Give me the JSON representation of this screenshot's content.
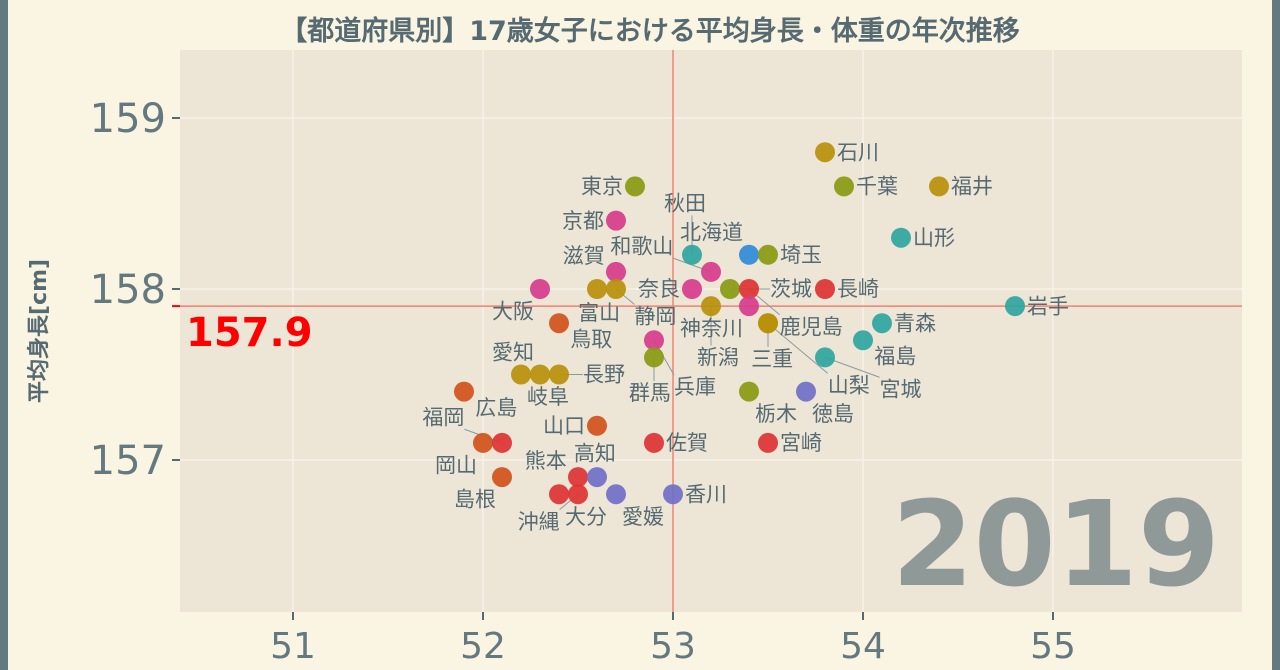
{
  "chart_data": {
    "type": "scatter",
    "title": "【都道府県別】17歳女子における平均身長・体重の年次推移",
    "xlabel": "",
    "ylabel": "平均身長[cm]",
    "year_label": "2019",
    "xlim": [
      50.4,
      55.95
    ],
    "ylim": [
      156.1,
      159.4
    ],
    "xticks": [
      51,
      52,
      53,
      54,
      55
    ],
    "yticks": [
      157,
      158,
      159
    ],
    "reference": {
      "x": 53,
      "y": 157.9,
      "y_label": "157.9",
      "color": "#ff0000"
    },
    "grid": true,
    "points": [
      {
        "name": "石川",
        "x": 53.8,
        "y": 158.8,
        "color": "#b8900a"
      },
      {
        "name": "千葉",
        "x": 53.9,
        "y": 158.6,
        "color": "#8a9a12"
      },
      {
        "name": "福井",
        "x": 54.4,
        "y": 158.6,
        "color": "#b8900a"
      },
      {
        "name": "東京",
        "x": 52.8,
        "y": 158.6,
        "color": "#8a9a12"
      },
      {
        "name": "京都",
        "x": 52.7,
        "y": 158.4,
        "color": "#d63c8c"
      },
      {
        "name": "山形",
        "x": 54.2,
        "y": 158.3,
        "color": "#2ea59f"
      },
      {
        "name": "秋田",
        "x": 53.1,
        "y": 158.2,
        "color": "#2ea59f"
      },
      {
        "name": "北海道",
        "x": 53.4,
        "y": 158.2,
        "color": "#2e8bd8"
      },
      {
        "name": "埼玉",
        "x": 53.5,
        "y": 158.2,
        "color": "#8a9a12"
      },
      {
        "name": "滋賀",
        "x": 52.7,
        "y": 158.1,
        "color": "#d63c8c"
      },
      {
        "name": "和歌山",
        "x": 53.2,
        "y": 158.1,
        "color": "#d63c8c"
      },
      {
        "name": "大阪",
        "x": 52.3,
        "y": 158.0,
        "color": "#d63c8c"
      },
      {
        "name": "富山",
        "x": 52.6,
        "y": 158.0,
        "color": "#b8900a"
      },
      {
        "name": "静岡",
        "x": 52.7,
        "y": 158.0,
        "color": "#b8900a"
      },
      {
        "name": "奈良",
        "x": 53.1,
        "y": 158.0,
        "color": "#d63c8c"
      },
      {
        "name": "茨城",
        "x": 53.3,
        "y": 158.0,
        "color": "#8a9a12"
      },
      {
        "name": "鹿児島",
        "x": 53.4,
        "y": 158.0,
        "color": "#dd3333"
      },
      {
        "name": "長崎",
        "x": 53.8,
        "y": 158.0,
        "color": "#dd3333"
      },
      {
        "name": "新潟",
        "x": 53.2,
        "y": 157.9,
        "color": "#b8900a"
      },
      {
        "name": "神奈川",
        "x": 53.4,
        "y": 157.9,
        "color": "#d63c8c"
      },
      {
        "name": "三重",
        "x": 53.5,
        "y": 157.8,
        "color": "#b8900a"
      },
      {
        "name": "山梨",
        "x": 53.5,
        "y": 157.8,
        "color": "#b8900a"
      },
      {
        "name": "岩手",
        "x": 54.8,
        "y": 157.9,
        "color": "#2ea59f"
      },
      {
        "name": "青森",
        "x": 54.1,
        "y": 157.8,
        "color": "#2ea59f"
      },
      {
        "name": "福島",
        "x": 54.0,
        "y": 157.7,
        "color": "#2ea59f"
      },
      {
        "name": "宮城",
        "x": 53.8,
        "y": 157.6,
        "color": "#2ea59f"
      },
      {
        "name": "鳥取",
        "x": 52.4,
        "y": 157.8,
        "color": "#d0521a"
      },
      {
        "name": "兵庫",
        "x": 52.9,
        "y": 157.7,
        "color": "#d63c8c"
      },
      {
        "name": "群馬",
        "x": 52.9,
        "y": 157.6,
        "color": "#8a9a12"
      },
      {
        "name": "岐阜",
        "x": 52.2,
        "y": 157.5,
        "color": "#b8900a"
      },
      {
        "name": "愛知",
        "x": 52.3,
        "y": 157.5,
        "color": "#b8900a"
      },
      {
        "name": "長野",
        "x": 52.4,
        "y": 157.5,
        "color": "#b8900a"
      },
      {
        "name": "広島",
        "x": 51.9,
        "y": 157.4,
        "color": "#d0521a"
      },
      {
        "name": "栃木",
        "x": 53.4,
        "y": 157.4,
        "color": "#8a9a12"
      },
      {
        "name": "徳島",
        "x": 53.7,
        "y": 157.4,
        "color": "#7070c8"
      },
      {
        "name": "山口",
        "x": 52.6,
        "y": 157.2,
        "color": "#d0521a"
      },
      {
        "name": "岡山",
        "x": 52.0,
        "y": 157.1,
        "color": "#d0521a"
      },
      {
        "name": "福岡",
        "x": 52.1,
        "y": 157.1,
        "color": "#dd3333"
      },
      {
        "name": "佐賀",
        "x": 52.9,
        "y": 157.1,
        "color": "#dd3333"
      },
      {
        "name": "宮崎",
        "x": 53.5,
        "y": 157.1,
        "color": "#dd3333"
      },
      {
        "name": "島根",
        "x": 52.1,
        "y": 156.9,
        "color": "#d0521a"
      },
      {
        "name": "熊本",
        "x": 52.5,
        "y": 156.9,
        "color": "#dd3333"
      },
      {
        "name": "高知",
        "x": 52.6,
        "y": 156.9,
        "color": "#7070c8"
      },
      {
        "name": "大分",
        "x": 52.4,
        "y": 156.8,
        "color": "#dd3333"
      },
      {
        "name": "沖縄",
        "x": 52.5,
        "y": 156.8,
        "color": "#dd3333"
      },
      {
        "name": "愛媛",
        "x": 52.7,
        "y": 156.8,
        "color": "#7070c8"
      },
      {
        "name": "香川",
        "x": 53.0,
        "y": 156.8,
        "color": "#7070c8"
      }
    ]
  }
}
